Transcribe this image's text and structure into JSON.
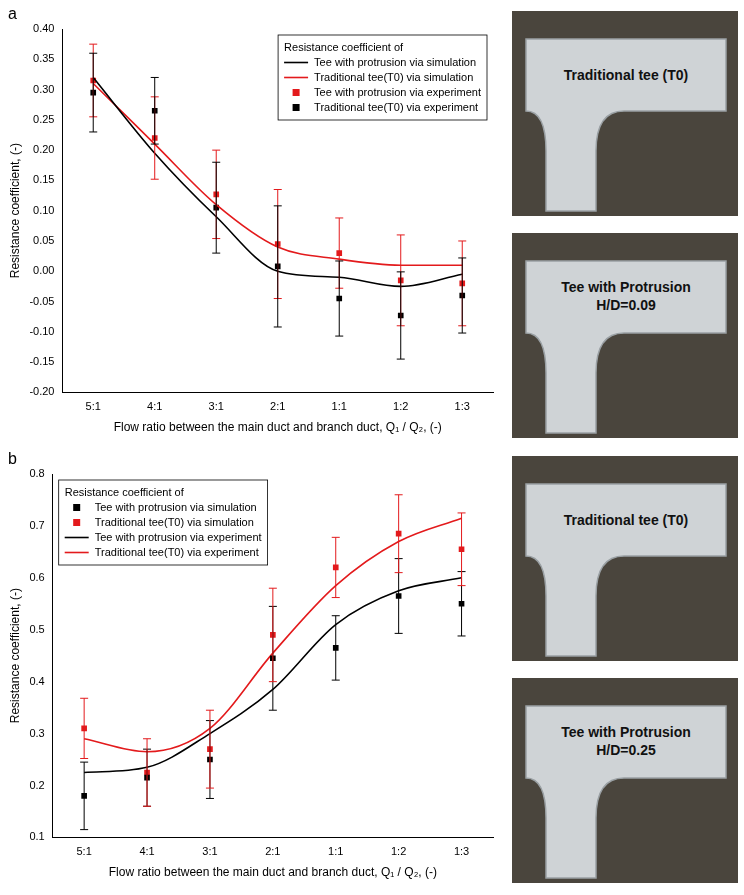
{
  "chart_data": [
    {
      "type": "line",
      "panel_label": "a",
      "x_label": "Flow ratio between the main duct and branch duct, Q₁ / Q₂, (-)",
      "y_label": "Resistance coefficient, (-)",
      "legend_title": "Resistance coefficient of",
      "legend": "upper right",
      "grid": false,
      "categories": [
        "5:1",
        "4:1",
        "3:1",
        "2:1",
        "1:1",
        "1:2",
        "1:3"
      ],
      "ylim": [
        -0.2,
        0.4
      ],
      "yticks": [
        {
          "value": -0.2,
          "label": "-0.20"
        },
        -0.15,
        {
          "value": -0.1,
          "label": "-0.10"
        },
        -0.05,
        {
          "value": 0,
          "label": "0.00"
        },
        0.05,
        {
          "value": 0.1,
          "label": "0.10"
        },
        0.15,
        {
          "value": 0.2,
          "label": "0.20"
        },
        0.25,
        {
          "value": 0.3,
          "label": "0.30"
        },
        0.35,
        {
          "value": 0.4,
          "label": "0.40"
        }
      ],
      "photo_labels": [
        "Traditional tee (T0)",
        "Tee with Protrusion H/D=0.09"
      ],
      "series": [
        {
          "name": "Tee with protrusion via simulation",
          "type": "line",
          "marker": "none",
          "color": "#000000",
          "values": [
            0.32,
            0.195,
            0.09,
            0.0,
            -0.01,
            -0.025,
            -0.005
          ]
        },
        {
          "name": "Traditional tee(T0) via simulation",
          "type": "line",
          "marker": "none",
          "color": "#e31a1c",
          "values": [
            0.31,
            0.21,
            0.11,
            0.04,
            0.02,
            0.01,
            0.01
          ]
        },
        {
          "name": "Tee with protrusion via experiment",
          "type": "scatter",
          "marker": "square",
          "color": "#e31a1c",
          "values": [
            0.315,
            0.22,
            0.127,
            0.045,
            0.03,
            -0.015,
            -0.02
          ],
          "errors": [
            0.06,
            0.068,
            0.073,
            0.09,
            0.058,
            0.075,
            0.07
          ]
        },
        {
          "name": "Traditional tee(T0) via experiment",
          "type": "scatter",
          "marker": "square",
          "color": "#000000",
          "values": [
            0.295,
            0.265,
            0.105,
            0.008,
            -0.045,
            -0.073,
            -0.04
          ],
          "errors": [
            0.065,
            0.055,
            0.075,
            0.1,
            0.062,
            0.072,
            0.062
          ]
        }
      ]
    },
    {
      "type": "line",
      "panel_label": "b",
      "x_label": "Flow ratio between the main duct and branch duct, Q₁ / Q₂, (-)",
      "y_label": "Resistance coefficient, (-)",
      "legend_title": "Resistance coefficient of",
      "legend": "upper left",
      "grid": false,
      "categories": [
        "5:1",
        "4:1",
        "3:1",
        "2:1",
        "1:1",
        "1:2",
        "1:3"
      ],
      "ylim": [
        0.1,
        0.8
      ],
      "yticks": [
        0.1,
        0.2,
        0.3,
        0.4,
        0.5,
        0.6,
        0.7,
        0.8
      ],
      "photo_labels": [
        "Traditional tee (T0)",
        "Tee with Protrusion H/D=0.25"
      ],
      "series": [
        {
          "name": "Tee with protrusion via simulation",
          "type": "scatter",
          "marker": "square",
          "color": "#000000",
          "values": [
            0.18,
            0.215,
            0.25,
            0.445,
            0.465,
            0.565,
            0.55
          ],
          "errors": [
            0.065,
            0.055,
            0.075,
            0.1,
            0.062,
            0.072,
            0.062
          ]
        },
        {
          "name": "Traditional tee(T0) via simulation",
          "type": "scatter",
          "marker": "square",
          "color": "#e31a1c",
          "values": [
            0.31,
            0.225,
            0.27,
            0.49,
            0.62,
            0.685,
            0.655
          ],
          "errors": [
            0.058,
            0.065,
            0.075,
            0.09,
            0.058,
            0.075,
            0.07
          ]
        },
        {
          "name": "Tee with protrusion via experiment",
          "type": "line",
          "marker": "none",
          "color": "#000000",
          "values": [
            0.225,
            0.235,
            0.3,
            0.385,
            0.51,
            0.575,
            0.6
          ]
        },
        {
          "name": "Traditional tee(T0) via experiment",
          "type": "line",
          "marker": "none",
          "color": "#e31a1c",
          "values": [
            0.29,
            0.265,
            0.31,
            0.455,
            0.585,
            0.67,
            0.715
          ]
        }
      ]
    }
  ]
}
